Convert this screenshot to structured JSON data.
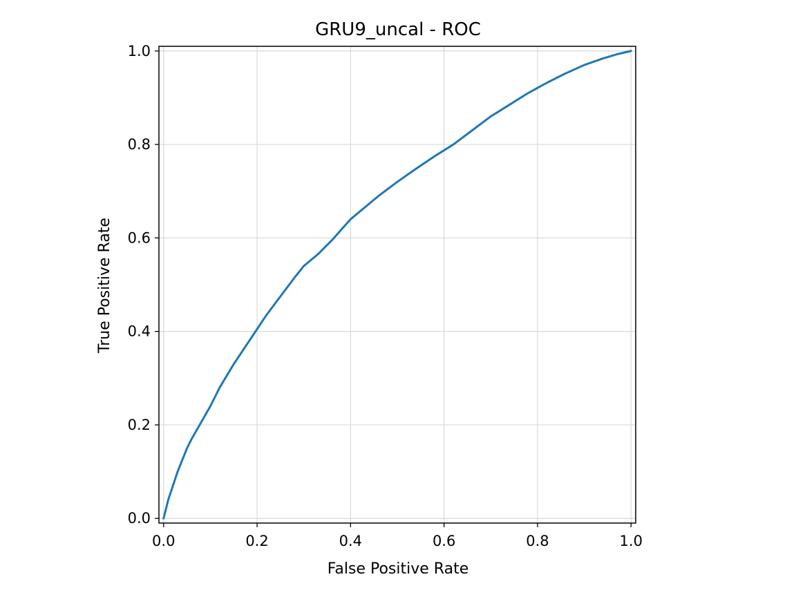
{
  "chart_data": {
    "type": "line",
    "title": "GRU9_uncal - ROC",
    "xlabel": "False Positive Rate",
    "ylabel": "True Positive Rate",
    "xlim": [
      -0.01,
      1.01
    ],
    "ylim": [
      -0.01,
      1.01
    ],
    "xticks": [
      0.0,
      0.2,
      0.4,
      0.6,
      0.8,
      1.0
    ],
    "yticks": [
      0.0,
      0.2,
      0.4,
      0.6,
      0.8,
      1.0
    ],
    "xtick_labels": [
      "0.0",
      "0.2",
      "0.4",
      "0.6",
      "0.8",
      "1.0"
    ],
    "ytick_labels": [
      "0.0",
      "0.2",
      "0.4",
      "0.6",
      "0.8",
      "1.0"
    ],
    "grid": true,
    "series": [
      {
        "color": "#1f77b4",
        "x": [
          0.0,
          0.005,
          0.01,
          0.02,
          0.03,
          0.04,
          0.05,
          0.06,
          0.08,
          0.1,
          0.12,
          0.15,
          0.18,
          0.2,
          0.22,
          0.25,
          0.28,
          0.3,
          0.33,
          0.36,
          0.4,
          0.43,
          0.46,
          0.5,
          0.54,
          0.58,
          0.62,
          0.66,
          0.7,
          0.74,
          0.78,
          0.82,
          0.86,
          0.9,
          0.94,
          0.97,
          1.0
        ],
        "y": [
          0.0,
          0.02,
          0.04,
          0.07,
          0.1,
          0.125,
          0.15,
          0.17,
          0.205,
          0.24,
          0.28,
          0.33,
          0.375,
          0.405,
          0.435,
          0.475,
          0.515,
          0.54,
          0.565,
          0.595,
          0.64,
          0.665,
          0.69,
          0.72,
          0.748,
          0.775,
          0.8,
          0.83,
          0.86,
          0.885,
          0.91,
          0.932,
          0.952,
          0.97,
          0.984,
          0.993,
          1.0
        ]
      }
    ]
  }
}
